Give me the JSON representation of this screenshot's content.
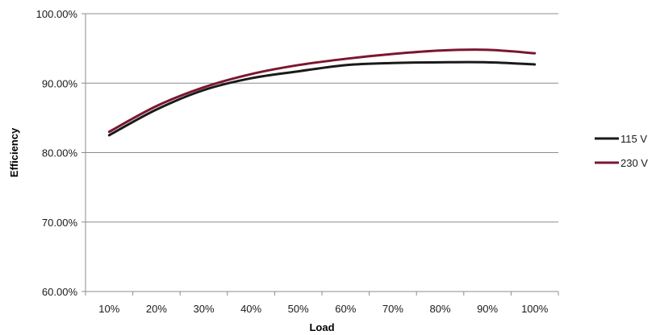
{
  "chart_data": {
    "type": "line",
    "title": "",
    "xlabel": "Load",
    "ylabel": "Efficiency",
    "categories": [
      "10%",
      "20%",
      "30%",
      "40%",
      "50%",
      "60%",
      "70%",
      "80%",
      "90%",
      "100%"
    ],
    "y_ticks": [
      "60.00%",
      "70.00%",
      "80.00%",
      "90.00%",
      "100.00%"
    ],
    "ylim": [
      60,
      100
    ],
    "grid": true,
    "legend": "right",
    "series": [
      {
        "name": "115 V",
        "color": "#1a1a1a",
        "values": [
          82.5,
          86.2,
          89.0,
          90.7,
          91.7,
          92.6,
          92.9,
          93.0,
          93.0,
          92.7
        ]
      },
      {
        "name": "230 V",
        "color": "#7b1631",
        "values": [
          83.0,
          86.7,
          89.4,
          91.3,
          92.6,
          93.5,
          94.2,
          94.7,
          94.8,
          94.3
        ]
      }
    ]
  }
}
